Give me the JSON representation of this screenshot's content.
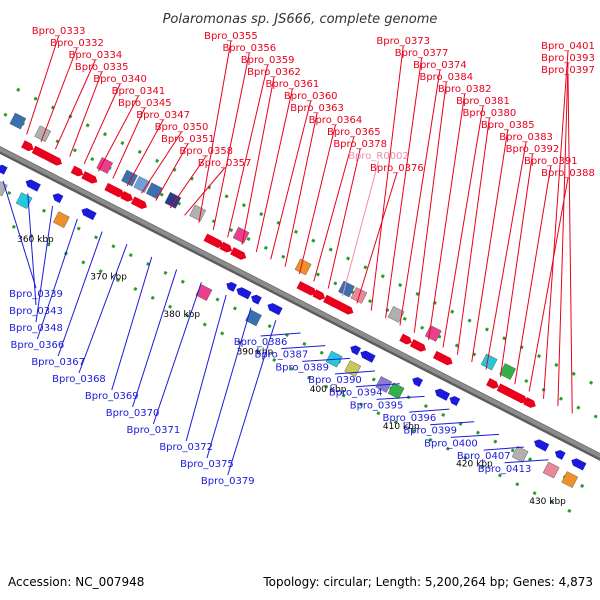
{
  "title": "Polaromonas sp. JS666, complete genome",
  "footer": {
    "accession": "Accession: NC_007948",
    "topology": "Topology: circular; Length: 5,200,264 bp; Genes: 4,873"
  },
  "colors": {
    "forward_label": "#e8001c",
    "reverse_label": "#1a1ad8",
    "rna_label": "#f08cb4",
    "backbone": "#8c8c8c",
    "tick": "#2a9a2a"
  },
  "ticks": [
    "360 kbp",
    "370 kbp",
    "380 kbp",
    "390 kbp",
    "400 kbp",
    "410 kbp",
    "420 kbp",
    "430 kbp"
  ],
  "labels_top": [
    {
      "text": "Bpro_0333",
      "kind": "forward"
    },
    {
      "text": "Bpro_0332",
      "kind": "forward"
    },
    {
      "text": "Bpro_0334",
      "kind": "forward"
    },
    {
      "text": "Bpro_0335",
      "kind": "forward"
    },
    {
      "text": "Bpro_0340",
      "kind": "forward"
    },
    {
      "text": "Bpro_0341",
      "kind": "forward"
    },
    {
      "text": "Bpro_0345",
      "kind": "forward"
    },
    {
      "text": "Bpro_0347",
      "kind": "forward"
    },
    {
      "text": "Bpro_0350",
      "kind": "forward"
    },
    {
      "text": "Bpro_0351",
      "kind": "forward"
    },
    {
      "text": "Bpro_0358",
      "kind": "forward"
    },
    {
      "text": "Bpro_0357",
      "kind": "forward"
    },
    {
      "text": "Bpro_0355",
      "kind": "forward"
    },
    {
      "text": "Bpro_0356",
      "kind": "forward"
    },
    {
      "text": "Bpro_0359",
      "kind": "forward"
    },
    {
      "text": "Bpro_0362",
      "kind": "forward"
    },
    {
      "text": "Bpro_0361",
      "kind": "forward"
    },
    {
      "text": "Bpro_0360",
      "kind": "forward"
    },
    {
      "text": "Bpro_0363",
      "kind": "forward"
    },
    {
      "text": "Bpro_0364",
      "kind": "forward"
    },
    {
      "text": "Bpro_0365",
      "kind": "forward"
    },
    {
      "text": "Bpro_0378",
      "kind": "forward"
    },
    {
      "text": "Bpro_R0002",
      "kind": "rna"
    },
    {
      "text": "Bpro_0376",
      "kind": "forward"
    },
    {
      "text": "Bpro_0373",
      "kind": "forward"
    },
    {
      "text": "Bpro_0377",
      "kind": "forward"
    },
    {
      "text": "Bpro_0374",
      "kind": "forward"
    },
    {
      "text": "Bpro_0384",
      "kind": "forward"
    },
    {
      "text": "Bpro_0382",
      "kind": "forward"
    },
    {
      "text": "Bpro_0381",
      "kind": "forward"
    },
    {
      "text": "Bpro_0380",
      "kind": "forward"
    },
    {
      "text": "Bpro_0385",
      "kind": "forward"
    },
    {
      "text": "Bpro_0383",
      "kind": "forward"
    },
    {
      "text": "Bpro_0392",
      "kind": "forward"
    },
    {
      "text": "Bpro_0391",
      "kind": "forward"
    },
    {
      "text": "Bpro_0388",
      "kind": "forward"
    },
    {
      "text": "Bpro_0401",
      "kind": "forward"
    },
    {
      "text": "Bpro_0393",
      "kind": "forward"
    },
    {
      "text": "Bpro_0397",
      "kind": "forward"
    }
  ],
  "labels_bottom": [
    {
      "text": "Bpro_0339",
      "kind": "reverse"
    },
    {
      "text": "Bpro_0343",
      "kind": "reverse"
    },
    {
      "text": "Bpro_0348",
      "kind": "reverse"
    },
    {
      "text": "Bpro_0366",
      "kind": "reverse"
    },
    {
      "text": "Bpro_0367",
      "kind": "reverse"
    },
    {
      "text": "Bpro_0368",
      "kind": "reverse"
    },
    {
      "text": "Bpro_0369",
      "kind": "reverse"
    },
    {
      "text": "Bpro_0370",
      "kind": "reverse"
    },
    {
      "text": "Bpro_0371",
      "kind": "reverse"
    },
    {
      "text": "Bpro_0372",
      "kind": "reverse"
    },
    {
      "text": "Bpro_0375",
      "kind": "reverse"
    },
    {
      "text": "Bpro_0379",
      "kind": "reverse"
    },
    {
      "text": "Bpro_0386",
      "kind": "reverse"
    },
    {
      "text": "Bpro_0387",
      "kind": "reverse"
    },
    {
      "text": "Bpro_0389",
      "kind": "reverse"
    },
    {
      "text": "Bpro_0390",
      "kind": "reverse"
    },
    {
      "text": "Bpro_0394",
      "kind": "reverse"
    },
    {
      "text": "Bpro_0395",
      "kind": "reverse"
    },
    {
      "text": "Bpro_0396",
      "kind": "reverse"
    },
    {
      "text": "Bpro_0399",
      "kind": "reverse"
    },
    {
      "text": "Bpro_0400",
      "kind": "reverse"
    },
    {
      "text": "Bpro_0407",
      "kind": "reverse"
    },
    {
      "text": "Bpro_0413",
      "kind": "reverse"
    }
  ]
}
